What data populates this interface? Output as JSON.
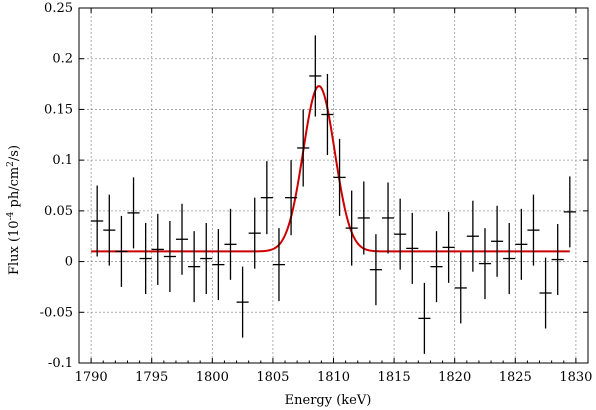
{
  "chart_data": {
    "type": "scatter",
    "title": "",
    "xlabel": "Energy (keV)",
    "ylabel_parts": {
      "pre": "Flux (10",
      "exp1": "-4",
      "mid": " ph/cm",
      "exp2": "2",
      "post": "/s)"
    },
    "xlim": [
      1789,
      1831
    ],
    "ylim": [
      -0.1,
      0.25
    ],
    "xticks": [
      1790,
      1795,
      1800,
      1805,
      1810,
      1815,
      1820,
      1825,
      1830
    ],
    "yticks": [
      -0.1,
      -0.05,
      0,
      0.05,
      0.1,
      0.15,
      0.2,
      0.25
    ],
    "ytick_labels": [
      "-0.1",
      "-0.05",
      "0",
      "0.05",
      "0.1",
      "0.15",
      "0.2",
      "0.25"
    ],
    "grid": true,
    "points": [
      {
        "x": 1790.5,
        "y": 0.04,
        "xerr": 0.5,
        "yerr": 0.035
      },
      {
        "x": 1791.5,
        "y": 0.031,
        "xerr": 0.5,
        "yerr": 0.035
      },
      {
        "x": 1792.5,
        "y": 0.01,
        "xerr": 0.5,
        "yerr": 0.035
      },
      {
        "x": 1793.5,
        "y": 0.048,
        "xerr": 0.5,
        "yerr": 0.035
      },
      {
        "x": 1794.5,
        "y": 0.003,
        "xerr": 0.5,
        "yerr": 0.035
      },
      {
        "x": 1795.5,
        "y": 0.012,
        "xerr": 0.5,
        "yerr": 0.035
      },
      {
        "x": 1796.5,
        "y": 0.005,
        "xerr": 0.5,
        "yerr": 0.035
      },
      {
        "x": 1797.5,
        "y": 0.022,
        "xerr": 0.5,
        "yerr": 0.035
      },
      {
        "x": 1798.5,
        "y": -0.005,
        "xerr": 0.5,
        "yerr": 0.035
      },
      {
        "x": 1799.5,
        "y": 0.003,
        "xerr": 0.5,
        "yerr": 0.035
      },
      {
        "x": 1800.5,
        "y": -0.003,
        "xerr": 0.5,
        "yerr": 0.035
      },
      {
        "x": 1801.5,
        "y": 0.017,
        "xerr": 0.5,
        "yerr": 0.035
      },
      {
        "x": 1802.5,
        "y": -0.04,
        "xerr": 0.5,
        "yerr": 0.035
      },
      {
        "x": 1803.5,
        "y": 0.028,
        "xerr": 0.5,
        "yerr": 0.035
      },
      {
        "x": 1804.5,
        "y": 0.063,
        "xerr": 0.5,
        "yerr": 0.036
      },
      {
        "x": 1805.5,
        "y": -0.003,
        "xerr": 0.5,
        "yerr": 0.036
      },
      {
        "x": 1806.5,
        "y": 0.063,
        "xerr": 0.5,
        "yerr": 0.037
      },
      {
        "x": 1807.5,
        "y": 0.112,
        "xerr": 0.5,
        "yerr": 0.038
      },
      {
        "x": 1808.5,
        "y": 0.183,
        "xerr": 0.5,
        "yerr": 0.04
      },
      {
        "x": 1809.5,
        "y": 0.145,
        "xerr": 0.5,
        "yerr": 0.04
      },
      {
        "x": 1810.5,
        "y": 0.083,
        "xerr": 0.5,
        "yerr": 0.038
      },
      {
        "x": 1811.5,
        "y": 0.033,
        "xerr": 0.5,
        "yerr": 0.037
      },
      {
        "x": 1812.5,
        "y": 0.043,
        "xerr": 0.5,
        "yerr": 0.036
      },
      {
        "x": 1813.5,
        "y": -0.008,
        "xerr": 0.5,
        "yerr": 0.035
      },
      {
        "x": 1814.5,
        "y": 0.043,
        "xerr": 0.5,
        "yerr": 0.035
      },
      {
        "x": 1815.5,
        "y": 0.027,
        "xerr": 0.5,
        "yerr": 0.035
      },
      {
        "x": 1816.5,
        "y": 0.013,
        "xerr": 0.5,
        "yerr": 0.035
      },
      {
        "x": 1817.5,
        "y": -0.056,
        "xerr": 0.5,
        "yerr": 0.035
      },
      {
        "x": 1818.5,
        "y": -0.005,
        "xerr": 0.5,
        "yerr": 0.035
      },
      {
        "x": 1819.5,
        "y": 0.014,
        "xerr": 0.5,
        "yerr": 0.035
      },
      {
        "x": 1820.5,
        "y": -0.026,
        "xerr": 0.5,
        "yerr": 0.035
      },
      {
        "x": 1821.5,
        "y": 0.025,
        "xerr": 0.5,
        "yerr": 0.035
      },
      {
        "x": 1822.5,
        "y": -0.002,
        "xerr": 0.5,
        "yerr": 0.035
      },
      {
        "x": 1823.5,
        "y": 0.02,
        "xerr": 0.5,
        "yerr": 0.035
      },
      {
        "x": 1824.5,
        "y": 0.003,
        "xerr": 0.5,
        "yerr": 0.035
      },
      {
        "x": 1825.5,
        "y": 0.017,
        "xerr": 0.5,
        "yerr": 0.035
      },
      {
        "x": 1826.5,
        "y": 0.031,
        "xerr": 0.5,
        "yerr": 0.035
      },
      {
        "x": 1827.5,
        "y": -0.031,
        "xerr": 0.5,
        "yerr": 0.035
      },
      {
        "x": 1828.5,
        "y": 0.002,
        "xerr": 0.5,
        "yerr": 0.035
      },
      {
        "x": 1829.5,
        "y": 0.049,
        "xerr": 0.5,
        "yerr": 0.035
      }
    ],
    "fit": {
      "model": "gaussian",
      "baseline": 0.01,
      "amplitude": 0.163,
      "center": 1808.8,
      "sigma": 1.3,
      "x_range": [
        1790,
        1829.5
      ],
      "color": "#cc0000"
    },
    "colors": {
      "points": "#000000",
      "fit": "#cc0000",
      "grid": "#999999"
    }
  }
}
